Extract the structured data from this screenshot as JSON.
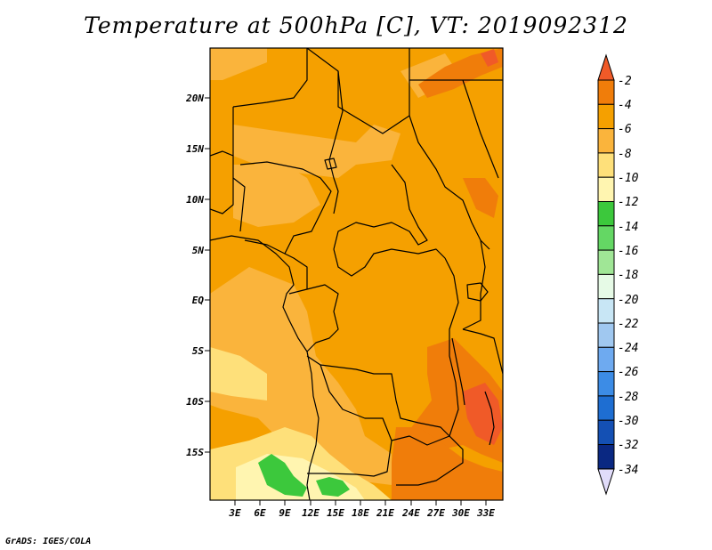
{
  "title": "Temperature at 500hPa [C], VT: 2019092312",
  "credit": "GrADS: IGES/COLA",
  "map": {
    "lat_labels": [
      "20N",
      "15N",
      "10N",
      "5N",
      "EQ",
      "5S",
      "10S",
      "15S"
    ],
    "lon_labels": [
      "3E",
      "6E",
      "9E",
      "12E",
      "15E",
      "18E",
      "21E",
      "24E",
      "27E",
      "30E",
      "33E"
    ]
  },
  "legend": {
    "labels": [
      "-2",
      "-4",
      "-6",
      "-8",
      "-10",
      "-12",
      "-14",
      "-16",
      "-18",
      "-20",
      "-22",
      "-24",
      "-26",
      "-28",
      "-30",
      "-32",
      "-34"
    ],
    "colors": [
      "#f05a28",
      "#f07d0a",
      "#f5a000",
      "#fab43c",
      "#fee07a",
      "#fff5b0",
      "#3cc83c",
      "#64d764",
      "#a0e696",
      "#e6fae6",
      "#c8e6f5",
      "#a0c8f0",
      "#6eaaf0",
      "#3c8ce6",
      "#1e6ed2",
      "#1450b4",
      "#0a2882",
      "#0a0f64",
      "#e1dcfa"
    ]
  }
}
